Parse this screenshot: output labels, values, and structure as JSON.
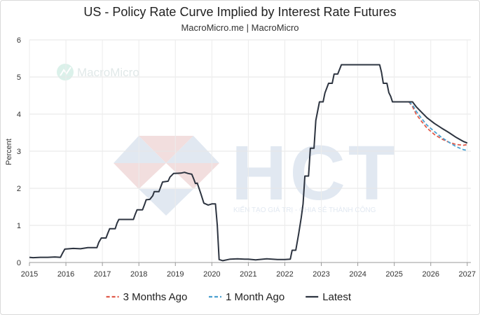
{
  "chart_data": {
    "type": "line",
    "title": "US - Policy Rate Curve Implied by Interest Rate Futures",
    "subtitle": "MacroMicro.me | MacroMicro",
    "ylabel": "Percent",
    "xlabel": "",
    "ylim": [
      0,
      6
    ],
    "xlim": [
      2015,
      2027.1
    ],
    "y_ticks": [
      "0",
      "1",
      "2",
      "3",
      "4",
      "5",
      "6"
    ],
    "x_ticks": [
      "2015",
      "2016",
      "2017",
      "2018",
      "2019",
      "2020",
      "2021",
      "2022",
      "2023",
      "2024",
      "2025",
      "2026",
      "2027"
    ],
    "grid": true,
    "legend_position": "bottom",
    "series": [
      {
        "name": "3 Months Ago",
        "color": "#e05a4a",
        "dash": true,
        "points": [
          [
            2025.4,
            4.33
          ],
          [
            2025.5,
            4.2
          ],
          [
            2025.6,
            4.0
          ],
          [
            2025.75,
            3.8
          ],
          [
            2025.9,
            3.62
          ],
          [
            2026.1,
            3.45
          ],
          [
            2026.3,
            3.33
          ],
          [
            2026.5,
            3.24
          ],
          [
            2026.7,
            3.18
          ],
          [
            2026.9,
            3.16
          ],
          [
            2027.0,
            3.18
          ]
        ]
      },
      {
        "name": "1 Month Ago",
        "color": "#4aa0d0",
        "dash": true,
        "points": [
          [
            2025.4,
            4.33
          ],
          [
            2025.5,
            4.25
          ],
          [
            2025.6,
            4.08
          ],
          [
            2025.75,
            3.88
          ],
          [
            2025.9,
            3.7
          ],
          [
            2026.1,
            3.53
          ],
          [
            2026.3,
            3.37
          ],
          [
            2026.5,
            3.24
          ],
          [
            2026.7,
            3.12
          ],
          [
            2026.9,
            3.04
          ],
          [
            2027.0,
            3.02
          ]
        ]
      },
      {
        "name": "Latest",
        "color": "#2d3440",
        "dash": false,
        "points": [
          [
            2015.0,
            0.14
          ],
          [
            2015.1,
            0.13
          ],
          [
            2015.3,
            0.14
          ],
          [
            2015.5,
            0.14
          ],
          [
            2015.7,
            0.15
          ],
          [
            2015.85,
            0.14
          ],
          [
            2015.9,
            0.24
          ],
          [
            2015.97,
            0.36
          ],
          [
            2016.2,
            0.38
          ],
          [
            2016.4,
            0.37
          ],
          [
            2016.6,
            0.4
          ],
          [
            2016.85,
            0.4
          ],
          [
            2016.9,
            0.54
          ],
          [
            2016.97,
            0.66
          ],
          [
            2017.1,
            0.66
          ],
          [
            2017.15,
            0.79
          ],
          [
            2017.2,
            0.91
          ],
          [
            2017.35,
            0.91
          ],
          [
            2017.4,
            1.06
          ],
          [
            2017.45,
            1.16
          ],
          [
            2017.75,
            1.16
          ],
          [
            2017.85,
            1.16
          ],
          [
            2017.9,
            1.3
          ],
          [
            2017.95,
            1.42
          ],
          [
            2018.1,
            1.42
          ],
          [
            2018.15,
            1.55
          ],
          [
            2018.2,
            1.69
          ],
          [
            2018.3,
            1.7
          ],
          [
            2018.38,
            1.8
          ],
          [
            2018.42,
            1.91
          ],
          [
            2018.55,
            1.91
          ],
          [
            2018.6,
            2.04
          ],
          [
            2018.65,
            2.17
          ],
          [
            2018.8,
            2.19
          ],
          [
            2018.85,
            2.3
          ],
          [
            2018.95,
            2.4
          ],
          [
            2019.15,
            2.41
          ],
          [
            2019.25,
            2.43
          ],
          [
            2019.35,
            2.4
          ],
          [
            2019.45,
            2.38
          ],
          [
            2019.5,
            2.26
          ],
          [
            2019.55,
            2.13
          ],
          [
            2019.6,
            2.14
          ],
          [
            2019.7,
            1.85
          ],
          [
            2019.78,
            1.6
          ],
          [
            2019.9,
            1.55
          ],
          [
            2020.0,
            1.58
          ],
          [
            2020.1,
            1.58
          ],
          [
            2020.15,
            1.0
          ],
          [
            2020.2,
            0.08
          ],
          [
            2020.3,
            0.05
          ],
          [
            2020.5,
            0.09
          ],
          [
            2020.7,
            0.1
          ],
          [
            2020.9,
            0.09
          ],
          [
            2021.0,
            0.09
          ],
          [
            2021.2,
            0.07
          ],
          [
            2021.5,
            0.1
          ],
          [
            2021.8,
            0.08
          ],
          [
            2022.0,
            0.08
          ],
          [
            2022.15,
            0.09
          ],
          [
            2022.2,
            0.33
          ],
          [
            2022.3,
            0.33
          ],
          [
            2022.38,
            0.77
          ],
          [
            2022.45,
            1.21
          ],
          [
            2022.5,
            1.58
          ],
          [
            2022.55,
            2.33
          ],
          [
            2022.65,
            2.33
          ],
          [
            2022.7,
            3.08
          ],
          [
            2022.8,
            3.08
          ],
          [
            2022.85,
            3.83
          ],
          [
            2022.95,
            4.33
          ],
          [
            2023.05,
            4.33
          ],
          [
            2023.1,
            4.57
          ],
          [
            2023.2,
            4.83
          ],
          [
            2023.3,
            4.83
          ],
          [
            2023.35,
            5.08
          ],
          [
            2023.45,
            5.08
          ],
          [
            2023.55,
            5.33
          ],
          [
            2023.9,
            5.33
          ],
          [
            2024.5,
            5.33
          ],
          [
            2024.6,
            5.33
          ],
          [
            2024.65,
            5.13
          ],
          [
            2024.7,
            4.83
          ],
          [
            2024.8,
            4.83
          ],
          [
            2024.85,
            4.58
          ],
          [
            2024.9,
            4.48
          ],
          [
            2024.95,
            4.33
          ],
          [
            2025.1,
            4.33
          ],
          [
            2025.4,
            4.33
          ],
          [
            2025.5,
            4.33
          ],
          [
            2025.6,
            4.2
          ],
          [
            2025.75,
            4.05
          ],
          [
            2025.9,
            3.9
          ],
          [
            2026.1,
            3.75
          ],
          [
            2026.3,
            3.62
          ],
          [
            2026.5,
            3.5
          ],
          [
            2026.7,
            3.37
          ],
          [
            2026.9,
            3.26
          ],
          [
            2027.0,
            3.22
          ]
        ]
      }
    ]
  },
  "watermarks": {
    "logo_text": "MacroMicro",
    "brand_text": "HCT",
    "brand_slogan": "KIẾN TẠO GIÁ TRỊ - CHIA SẺ THÀNH CÔNG"
  }
}
